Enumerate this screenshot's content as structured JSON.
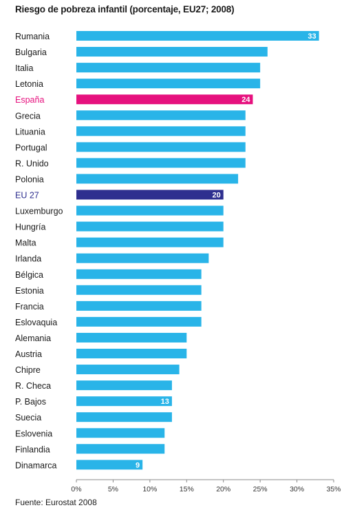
{
  "chart_data": {
    "type": "bar",
    "orientation": "horizontal",
    "title": "Riesgo de pobreza infantil (porcentaje, EU27; 2008)",
    "source": "Fuente: Eurostat 2008",
    "categories": [
      "Rumania",
      "Bulgaria",
      "Italia",
      "Letonia",
      "España",
      "Grecia",
      "Lituania",
      "Portugal",
      "R. Unido",
      "Polonia",
      "EU 27",
      "Luxemburgo",
      "Hungría",
      "Malta",
      "Irlanda",
      "Bélgica",
      "Estonia",
      "Francia",
      "Eslovaquia",
      "Alemania",
      "Austria",
      "Chipre",
      "R. Checa",
      "P. Bajos",
      "Suecia",
      "Eslovenia",
      "Finlandia",
      "Dinamarca"
    ],
    "values": [
      33,
      26,
      25,
      25,
      24,
      23,
      23,
      23,
      23,
      22,
      20,
      20,
      20,
      20,
      18,
      17,
      17,
      17,
      17,
      15,
      15,
      14,
      13,
      13,
      13,
      12,
      12,
      9
    ],
    "data_labels": {
      "Rumania": "33",
      "España": "24",
      "EU 27": "20",
      "P. Bajos": "13",
      "Dinamarca": "9"
    },
    "highlight": {
      "España": "#e6117e",
      "EU 27": "#2e2f8f"
    },
    "xlim": [
      0,
      35
    ],
    "xticks": [
      0,
      5,
      10,
      15,
      20,
      25,
      30,
      35
    ],
    "xtick_labels": [
      "0%",
      "5%",
      "10%",
      "15%",
      "20%",
      "25%",
      "30%",
      "35%"
    ],
    "grid": false,
    "legend": "none",
    "colors": {
      "bar": "#29b4e8",
      "label_default": "#1a1a1a",
      "axis": "#888888"
    }
  }
}
